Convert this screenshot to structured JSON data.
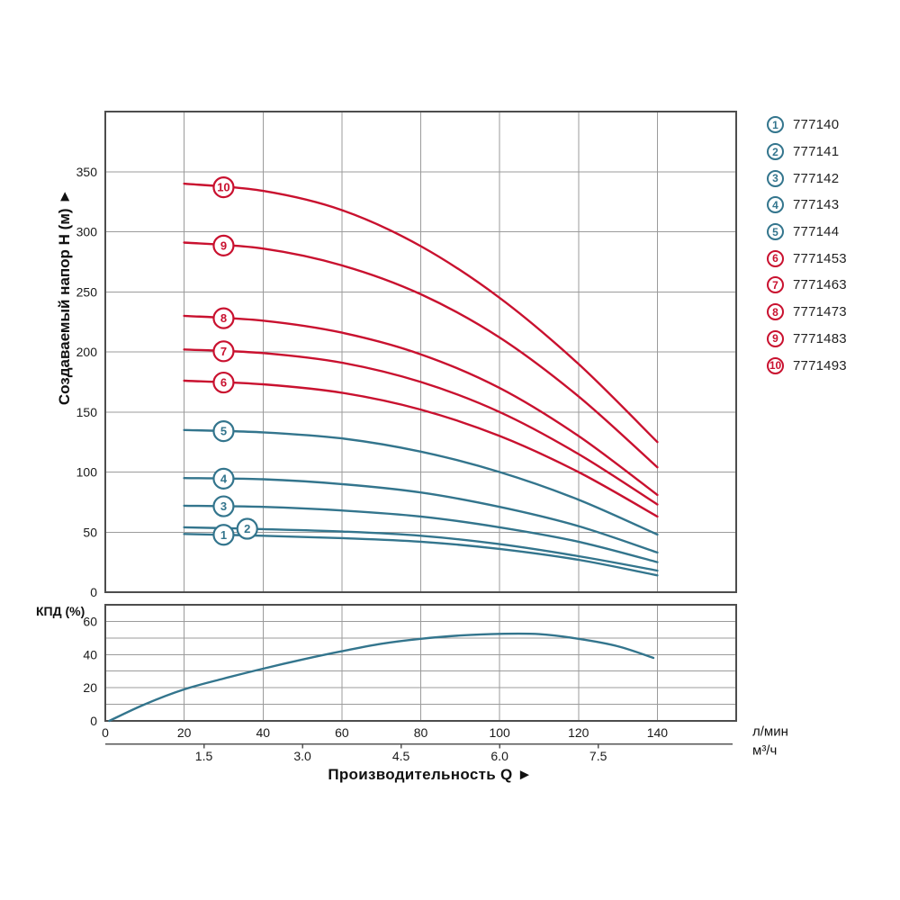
{
  "page": {
    "y_axis_title": "Создаваемый напор Н (м) ►",
    "x_axis_title": "Производительность Q ►",
    "efficiency_axis_label": "КПД (%)",
    "unit_flow_lmin": "л/мин",
    "unit_flow_m3h": "м³/ч"
  },
  "colors": {
    "teal": "#33758D",
    "red": "#C9112F",
    "grid": "#9B9B9B",
    "frame": "#4D4D4D",
    "axis": "#555555",
    "text": "#1A1A1A",
    "white": "#FFFFFF"
  },
  "legend": {
    "items": [
      {
        "num": "1",
        "model": "777140",
        "color": "teal"
      },
      {
        "num": "2",
        "model": "777141",
        "color": "teal"
      },
      {
        "num": "3",
        "model": "777142",
        "color": "teal"
      },
      {
        "num": "4",
        "model": "777143",
        "color": "teal"
      },
      {
        "num": "5",
        "model": "777144",
        "color": "teal"
      },
      {
        "num": "6",
        "model": "7771453",
        "color": "red"
      },
      {
        "num": "7",
        "model": "7771463",
        "color": "red"
      },
      {
        "num": "8",
        "model": "7771473",
        "color": "red"
      },
      {
        "num": "9",
        "model": "7771483",
        "color": "red"
      },
      {
        "num": "10",
        "model": "7771493",
        "color": "red"
      }
    ]
  },
  "chart_data": [
    {
      "id": "head-flow-curves",
      "type": "line",
      "xlabel": "Производительность Q",
      "ylabel": "Создаваемый напор Н (м)",
      "x_unit_primary": "л/мин",
      "x_unit_secondary": "м³/ч",
      "xlim": [
        0,
        160
      ],
      "ylim": [
        0,
        400
      ],
      "x_ticks": [
        0,
        20,
        40,
        60,
        80,
        100,
        120,
        140
      ],
      "y_ticks": [
        0,
        50,
        100,
        150,
        200,
        250,
        300,
        350
      ],
      "grid": true,
      "legend_position": "right",
      "series": [
        {
          "num": "1",
          "name": "777140",
          "color": "teal",
          "marker_q": 30,
          "points": [
            [
              20,
              48.5
            ],
            [
              40,
              47
            ],
            [
              60,
              45
            ],
            [
              80,
              42
            ],
            [
              100,
              36
            ],
            [
              120,
              27
            ],
            [
              140,
              14
            ]
          ]
        },
        {
          "num": "2",
          "name": "777141",
          "color": "teal",
          "marker_q": 36,
          "points": [
            [
              20,
              54
            ],
            [
              40,
              52.5
            ],
            [
              60,
              50.5
            ],
            [
              80,
              47
            ],
            [
              100,
              40
            ],
            [
              120,
              30
            ],
            [
              140,
              18
            ]
          ]
        },
        {
          "num": "3",
          "name": "777142",
          "color": "teal",
          "marker_q": 30,
          "points": [
            [
              20,
              72
            ],
            [
              40,
              71
            ],
            [
              60,
              68
            ],
            [
              80,
              63
            ],
            [
              100,
              54
            ],
            [
              120,
              42
            ],
            [
              140,
              25
            ]
          ]
        },
        {
          "num": "4",
          "name": "777143",
          "color": "teal",
          "marker_q": 30,
          "points": [
            [
              20,
              95
            ],
            [
              40,
              94
            ],
            [
              60,
              90
            ],
            [
              80,
              83
            ],
            [
              100,
              71
            ],
            [
              120,
              55
            ],
            [
              140,
              33
            ]
          ]
        },
        {
          "num": "5",
          "name": "777144",
          "color": "teal",
          "marker_q": 30,
          "points": [
            [
              20,
              135
            ],
            [
              40,
              133
            ],
            [
              60,
              128
            ],
            [
              80,
              117
            ],
            [
              100,
              100
            ],
            [
              120,
              77
            ],
            [
              140,
              48
            ]
          ]
        },
        {
          "num": "6",
          "name": "7771453",
          "color": "red",
          "marker_q": 30,
          "points": [
            [
              20,
              176
            ],
            [
              40,
              173
            ],
            [
              60,
              166
            ],
            [
              80,
              152
            ],
            [
              100,
              130
            ],
            [
              120,
              100
            ],
            [
              140,
              63
            ]
          ]
        },
        {
          "num": "7",
          "name": "7771463",
          "color": "red",
          "marker_q": 30,
          "points": [
            [
              20,
              202
            ],
            [
              40,
              199
            ],
            [
              60,
              191
            ],
            [
              80,
              175
            ],
            [
              100,
              150
            ],
            [
              120,
              115
            ],
            [
              140,
              73
            ]
          ]
        },
        {
          "num": "8",
          "name": "7771473",
          "color": "red",
          "marker_q": 30,
          "points": [
            [
              20,
              230
            ],
            [
              40,
              226
            ],
            [
              60,
              216
            ],
            [
              80,
              198
            ],
            [
              100,
              170
            ],
            [
              120,
              130
            ],
            [
              140,
              81
            ]
          ]
        },
        {
          "num": "9",
          "name": "7771483",
          "color": "red",
          "marker_q": 30,
          "points": [
            [
              20,
              291
            ],
            [
              40,
              286
            ],
            [
              60,
              272
            ],
            [
              80,
              248
            ],
            [
              100,
              212
            ],
            [
              120,
              163
            ],
            [
              140,
              104
            ]
          ]
        },
        {
          "num": "10",
          "name": "7771493",
          "color": "red",
          "marker_q": 30,
          "points": [
            [
              20,
              340
            ],
            [
              40,
              334
            ],
            [
              60,
              318
            ],
            [
              80,
              288
            ],
            [
              100,
              245
            ],
            [
              120,
              190
            ],
            [
              140,
              125
            ]
          ]
        }
      ]
    },
    {
      "id": "efficiency-curve",
      "type": "line",
      "ylabel": "КПД (%)",
      "xlim": [
        0,
        160
      ],
      "ylim": [
        0,
        70
      ],
      "x_ticks": [
        0,
        20,
        40,
        60,
        80,
        100,
        120,
        140
      ],
      "y_ticks": [
        0,
        20,
        40,
        60
      ],
      "y_grid_step": 10,
      "grid": true,
      "series": [
        {
          "name": "КПД",
          "color": "teal",
          "points": [
            [
              1,
              0
            ],
            [
              10,
              10
            ],
            [
              20,
              19
            ],
            [
              30,
              25.5
            ],
            [
              40,
              31.5
            ],
            [
              50,
              37
            ],
            [
              60,
              42
            ],
            [
              70,
              46.5
            ],
            [
              80,
              49.5
            ],
            [
              90,
              51.5
            ],
            [
              100,
              52.5
            ],
            [
              110,
              52.3
            ],
            [
              120,
              49.5
            ],
            [
              130,
              45
            ],
            [
              139,
              38
            ]
          ]
        }
      ]
    }
  ],
  "secondary_axis": {
    "unit": "м³/ч",
    "ticks": [
      {
        "label": "1.5",
        "q": 25
      },
      {
        "label": "3.0",
        "q": 50
      },
      {
        "label": "4.5",
        "q": 75
      },
      {
        "label": "6.0",
        "q": 100
      },
      {
        "label": "7.5",
        "q": 125
      }
    ]
  }
}
